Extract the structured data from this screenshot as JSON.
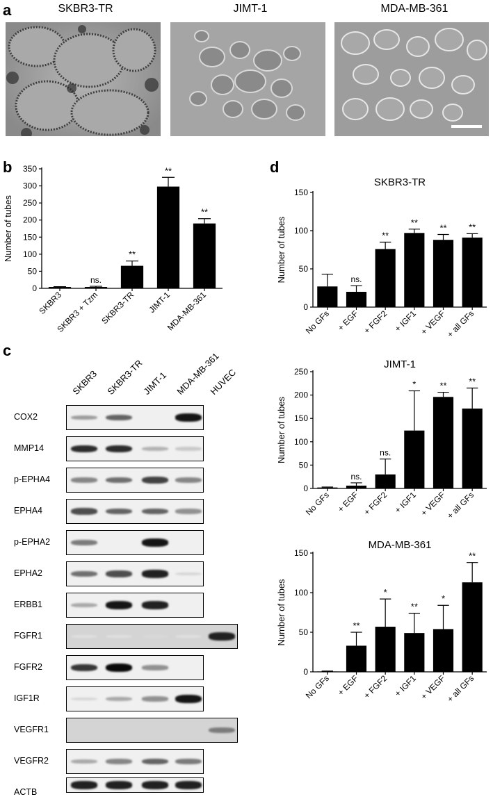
{
  "panels": {
    "a": "a",
    "b": "b",
    "c": "c",
    "d": "d"
  },
  "panel_a": {
    "titles": [
      "SKBR3-TR",
      "JIMT-1",
      "MDA-MB-361"
    ]
  },
  "panel_c": {
    "lanes": [
      "SKBR3",
      "SKBR3-TR",
      "JIMT-1",
      "MDA-MB-361",
      "HUVEC"
    ],
    "rows": [
      {
        "label": "COX2",
        "bands": [
          0.35,
          0.6,
          0.0,
          0.95
        ],
        "wide": false
      },
      {
        "label": "MMP14",
        "bands": [
          0.85,
          0.85,
          0.25,
          0.15
        ],
        "wide": false
      },
      {
        "label": "p-EPHA4",
        "bands": [
          0.45,
          0.55,
          0.75,
          0.45
        ],
        "wide": false
      },
      {
        "label": "EPHA4",
        "bands": [
          0.7,
          0.6,
          0.6,
          0.4
        ],
        "wide": false
      },
      {
        "label": "p-EPHA2",
        "bands": [
          0.5,
          0.0,
          0.95,
          0.0
        ],
        "wide": false
      },
      {
        "label": "EPHA2",
        "bands": [
          0.55,
          0.7,
          0.9,
          0.1
        ],
        "wide": false
      },
      {
        "label": "ERBB1",
        "bands": [
          0.3,
          0.95,
          0.9,
          0.0
        ],
        "wide": false
      },
      {
        "label": "FGFR1",
        "bands": [
          0.05,
          0.05,
          0.08,
          0.05,
          0.9
        ],
        "wide": true
      },
      {
        "label": "FGFR2",
        "bands": [
          0.8,
          1.0,
          0.4,
          0.0
        ],
        "wide": false
      },
      {
        "label": "IGF1R",
        "bands": [
          0.1,
          0.3,
          0.4,
          0.95
        ],
        "wide": false
      },
      {
        "label": "VEGFR1",
        "bands": [
          0.0,
          0.0,
          0.0,
          0.0,
          0.5
        ],
        "wide": true
      },
      {
        "label": "VEGFR2",
        "bands": [
          0.3,
          0.45,
          0.6,
          0.5
        ],
        "wide": false
      },
      {
        "label": "ACTB",
        "bands": [
          0.9,
          0.9,
          0.9,
          0.9
        ],
        "wide": false
      }
    ]
  },
  "chart_data": [
    {
      "id": "b",
      "type": "bar",
      "title": "",
      "ylabel": "Number of tubes",
      "xlabel": "",
      "categories": [
        "SKBR3",
        "SKBR3 + Tzm",
        "SKBR3-TR",
        "JIMT-1",
        "MDA-MB-361"
      ],
      "values": [
        4,
        4,
        66,
        298,
        190
      ],
      "errors": [
        1,
        2,
        14,
        27,
        14
      ],
      "annotations": [
        "",
        "ns.",
        "**",
        "**",
        "**"
      ],
      "ylim": [
        0,
        350
      ],
      "yticks": [
        0,
        50,
        100,
        150,
        200,
        250,
        300,
        350
      ]
    },
    {
      "id": "d1",
      "type": "bar",
      "title": "SKBR3-TR",
      "ylabel": "Number of tubes",
      "xlabel": "",
      "categories": [
        "No GFs",
        "+ EGF",
        "+ FGF2",
        "+ IGF1",
        "+ VEGF",
        "+ all GFs"
      ],
      "values": [
        27,
        20,
        76,
        97,
        88,
        91
      ],
      "errors": [
        16,
        8,
        9,
        5,
        7,
        5
      ],
      "annotations": [
        "",
        "ns.",
        "**",
        "**",
        "**",
        "**"
      ],
      "ylim": [
        0,
        150
      ],
      "yticks": [
        0,
        50,
        100,
        150
      ]
    },
    {
      "id": "d2",
      "type": "bar",
      "title": "JIMT-1",
      "ylabel": "Number of tubes",
      "xlabel": "",
      "categories": [
        "No GFs",
        "+ EGF",
        "+ FGF2",
        "+ IGF1",
        "+ VEGF",
        "+ all GFs"
      ],
      "values": [
        2,
        6,
        30,
        124,
        196,
        171
      ],
      "errors": [
        1,
        6,
        33,
        85,
        10,
        44
      ],
      "annotations": [
        "",
        "ns.",
        "ns.",
        "*",
        "**",
        "**"
      ],
      "ylim": [
        0,
        250
      ],
      "yticks": [
        0,
        50,
        100,
        150,
        200,
        250
      ]
    },
    {
      "id": "d3",
      "type": "bar",
      "title": "MDA-MB-361",
      "ylabel": "Number of tubes",
      "xlabel": "",
      "categories": [
        "No GFs",
        "+ EGF",
        "+ FGF2",
        "+ IGF1",
        "+ VEGF",
        "+ all GFs"
      ],
      "values": [
        0.5,
        33,
        57,
        49,
        54,
        113
      ],
      "errors": [
        0.5,
        17,
        35,
        25,
        30,
        25
      ],
      "annotations": [
        "",
        "**",
        "*",
        "**",
        "*",
        "**"
      ],
      "ylim": [
        0,
        150
      ],
      "yticks": [
        0,
        50,
        100,
        150
      ]
    }
  ]
}
